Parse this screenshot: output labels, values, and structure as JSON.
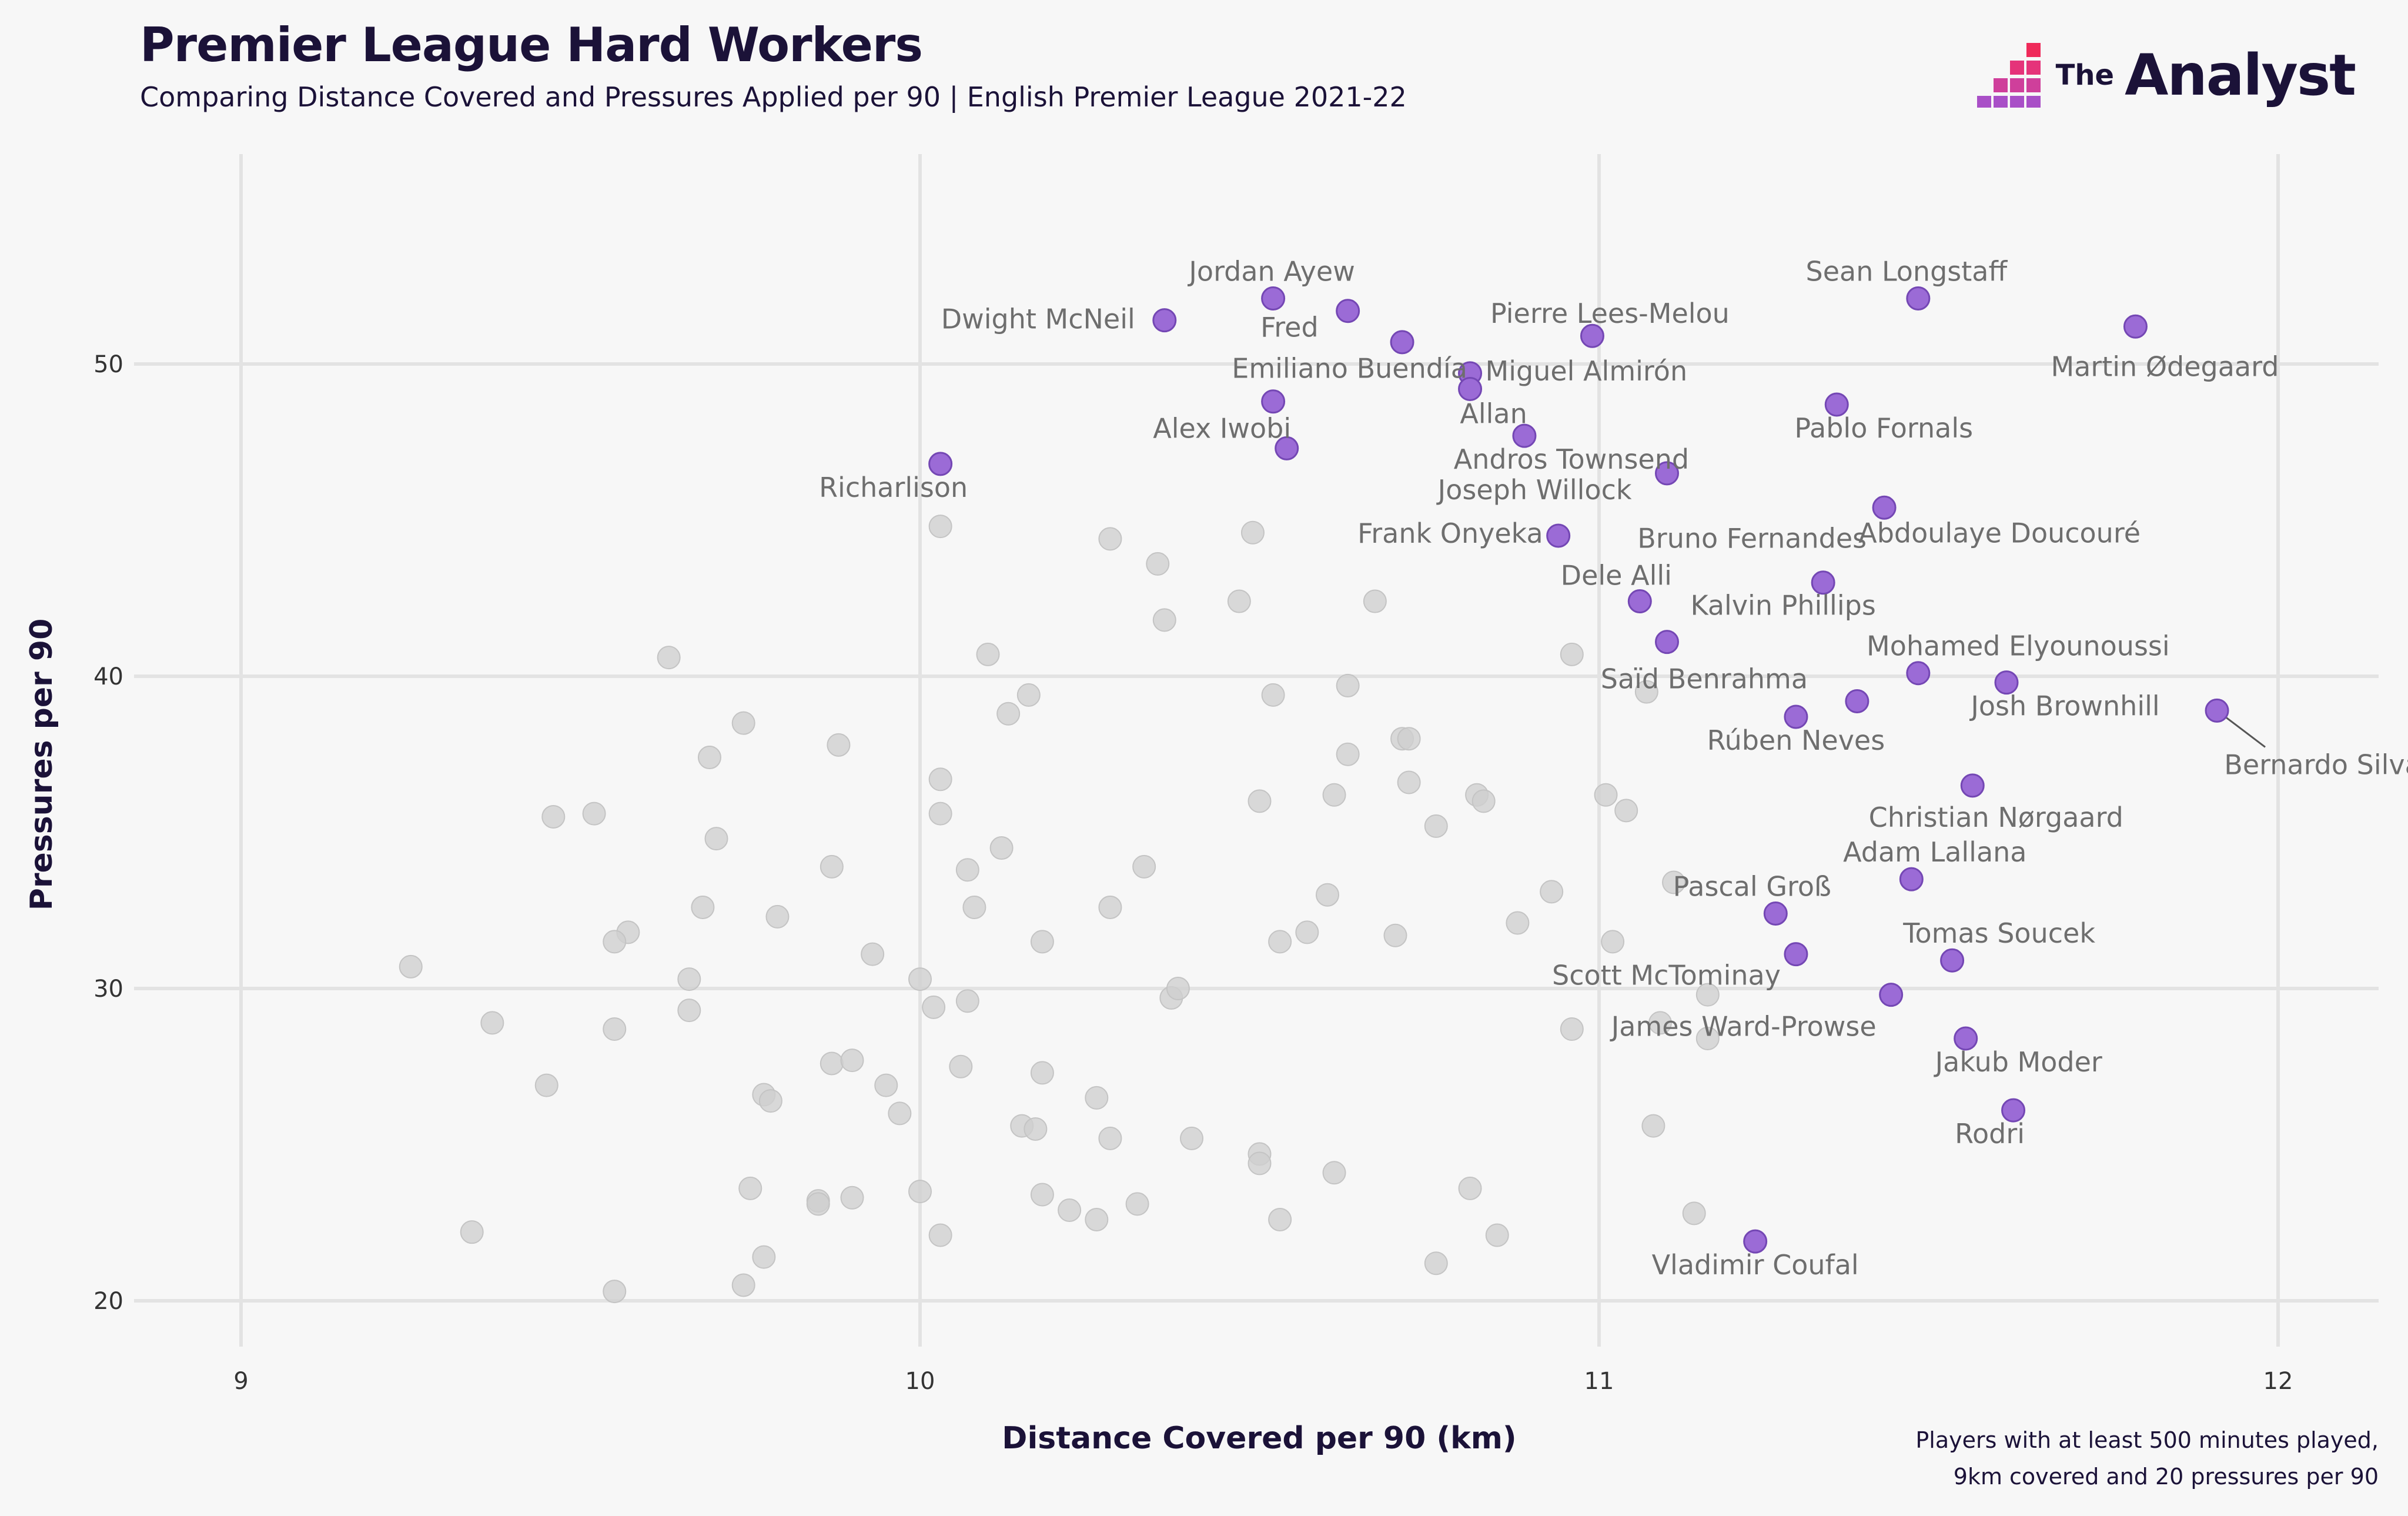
{
  "title": "Premier League Hard Workers",
  "subtitle": "Comparing Distance Covered and Pressures Applied per 90 | English Premier League 2021-22",
  "logo": {
    "prefix": "The",
    "name": "Analyst"
  },
  "footnote": {
    "line1": "Players with at least 500 minutes played,",
    "line2": "9km covered and 20 pressures per 90"
  },
  "colors": {
    "highlight": "#9b6bd6",
    "highlight_stroke": "#7447b4",
    "other": "#d0d0d0",
    "background": "#f7f7f7"
  },
  "chart_data": {
    "type": "scatter",
    "title": "Premier League Hard Workers",
    "xlabel": "Distance Covered per 90 (km)",
    "ylabel": "Pressures per 90",
    "xlim": [
      8.85,
      12.15
    ],
    "ylim": [
      18.7,
      56.5
    ],
    "xticks": [
      9,
      10,
      11,
      12
    ],
    "yticks": [
      20,
      30,
      40,
      50
    ],
    "grid": true,
    "highlighted": [
      {
        "name": "Jordan Ayew",
        "x": 10.52,
        "y": 52.1
      },
      {
        "name": "Fred",
        "x": 10.63,
        "y": 51.7
      },
      {
        "name": "Dwight McNeil",
        "x": 10.36,
        "y": 51.4
      },
      {
        "name": "Sean Longstaff",
        "x": 11.47,
        "y": 52.1
      },
      {
        "name": "Martin Ødegaard",
        "x": 11.79,
        "y": 51.2
      },
      {
        "name": "Pierre Lees-Melou",
        "x": 10.99,
        "y": 50.9
      },
      {
        "name": "Miguel Almirón",
        "x": 10.81,
        "y": 49.7
      },
      {
        "name": "Emiliano Buendía",
        "x": 10.52,
        "y": 48.8
      },
      {
        "name": "Allan",
        "x": 10.81,
        "y": 49.2
      },
      {
        "name": "Unlabelled",
        "x": 10.71,
        "y": 50.7
      },
      {
        "name": "Pablo Fornals",
        "x": 11.35,
        "y": 48.7
      },
      {
        "name": "Andros Townsend",
        "x": 10.89,
        "y": 47.7
      },
      {
        "name": "Alex Iwobi",
        "x": 10.54,
        "y": 47.3
      },
      {
        "name": "Joseph Willock",
        "x": 11.1,
        "y": 46.5
      },
      {
        "name": "Richarlison",
        "x": 10.03,
        "y": 46.8
      },
      {
        "name": "Bruno Fernandes",
        "x": 11.42,
        "y": 45.4
      },
      {
        "name": "Frank Onyeka",
        "x": 10.94,
        "y": 44.5
      },
      {
        "name": "Abdoulaye Doucouré",
        "x": 11.33,
        "y": 43.0
      },
      {
        "name": "Dele Alli",
        "x": 11.06,
        "y": 42.4
      },
      {
        "name": "Kalvin Phillips",
        "x": 11.1,
        "y": 41.1
      },
      {
        "name": "Mohamed Elyounoussi",
        "x": 11.47,
        "y": 40.1
      },
      {
        "name": "Saïd Benrahma",
        "x": 11.38,
        "y": 39.2
      },
      {
        "name": "Josh Brownhill",
        "x": 11.6,
        "y": 39.8
      },
      {
        "name": "Bernardo Silva",
        "x": 11.91,
        "y": 38.9
      },
      {
        "name": "Rúben Neves",
        "x": 11.29,
        "y": 38.7
      },
      {
        "name": "Christian Nørgaard",
        "x": 11.55,
        "y": 36.5
      },
      {
        "name": "Adam Lallana",
        "x": 11.46,
        "y": 33.5
      },
      {
        "name": "Pascal Groß",
        "x": 11.26,
        "y": 32.4
      },
      {
        "name": "Scott McTominay",
        "x": 11.29,
        "y": 31.1
      },
      {
        "name": "Tomas Soucek",
        "x": 11.52,
        "y": 30.9
      },
      {
        "name": "James Ward-Prowse",
        "x": 11.43,
        "y": 29.8
      },
      {
        "name": "Jakub Moder",
        "x": 11.54,
        "y": 28.4
      },
      {
        "name": "Rodri",
        "x": 11.61,
        "y": 26.1
      },
      {
        "name": "Vladimir Coufal",
        "x": 11.23,
        "y": 21.9
      }
    ],
    "others": [
      [
        10.03,
        44.8
      ],
      [
        10.28,
        44.4
      ],
      [
        10.35,
        43.6
      ],
      [
        10.49,
        44.6
      ],
      [
        10.47,
        42.4
      ],
      [
        10.36,
        41.8
      ],
      [
        10.67,
        42.4
      ],
      [
        9.63,
        40.6
      ],
      [
        10.1,
        40.7
      ],
      [
        10.96,
        40.7
      ],
      [
        10.13,
        38.8
      ],
      [
        10.16,
        39.4
      ],
      [
        10.52,
        39.4
      ],
      [
        10.63,
        39.7
      ],
      [
        11.07,
        39.5
      ],
      [
        9.74,
        38.5
      ],
      [
        9.69,
        37.4
      ],
      [
        9.88,
        37.8
      ],
      [
        10.71,
        38.0
      ],
      [
        10.72,
        38.0
      ],
      [
        10.63,
        37.5
      ],
      [
        10.03,
        36.7
      ],
      [
        9.46,
        35.5
      ],
      [
        9.52,
        35.6
      ],
      [
        10.03,
        35.6
      ],
      [
        10.5,
        36.0
      ],
      [
        10.61,
        36.2
      ],
      [
        10.72,
        36.6
      ],
      [
        10.82,
        36.2
      ],
      [
        10.83,
        36.0
      ],
      [
        11.01,
        36.2
      ],
      [
        11.04,
        35.7
      ],
      [
        10.76,
        35.2
      ],
      [
        9.7,
        34.8
      ],
      [
        10.12,
        34.5
      ],
      [
        9.87,
        33.9
      ],
      [
        10.07,
        33.8
      ],
      [
        10.33,
        33.9
      ],
      [
        10.6,
        33.0
      ],
      [
        10.93,
        33.1
      ],
      [
        11.11,
        33.4
      ],
      [
        9.68,
        32.6
      ],
      [
        9.79,
        32.3
      ],
      [
        10.08,
        32.6
      ],
      [
        10.28,
        32.6
      ],
      [
        10.88,
        32.1
      ],
      [
        9.57,
        31.8
      ],
      [
        9.55,
        31.5
      ],
      [
        9.93,
        31.1
      ],
      [
        10.18,
        31.5
      ],
      [
        10.53,
        31.5
      ],
      [
        10.57,
        31.8
      ],
      [
        10.7,
        31.7
      ],
      [
        11.02,
        31.5
      ],
      [
        9.25,
        30.7
      ],
      [
        9.66,
        30.3
      ],
      [
        10.0,
        30.3
      ],
      [
        9.37,
        28.9
      ],
      [
        9.66,
        29.3
      ],
      [
        10.02,
        29.4
      ],
      [
        10.07,
        29.6
      ],
      [
        10.37,
        29.7
      ],
      [
        10.38,
        30.0
      ],
      [
        11.16,
        29.8
      ],
      [
        9.55,
        28.7
      ],
      [
        10.96,
        28.7
      ],
      [
        11.16,
        28.4
      ],
      [
        11.09,
        28.9
      ],
      [
        9.45,
        26.9
      ],
      [
        9.77,
        26.6
      ],
      [
        9.87,
        27.6
      ],
      [
        9.9,
        27.7
      ],
      [
        9.78,
        26.4
      ],
      [
        9.95,
        26.9
      ],
      [
        9.97,
        26.0
      ],
      [
        10.06,
        27.5
      ],
      [
        10.18,
        27.3
      ],
      [
        10.26,
        26.5
      ],
      [
        10.15,
        25.6
      ],
      [
        10.17,
        25.5
      ],
      [
        10.28,
        25.2
      ],
      [
        10.4,
        25.2
      ],
      [
        10.5,
        24.7
      ],
      [
        10.5,
        24.4
      ],
      [
        10.61,
        24.1
      ],
      [
        11.08,
        25.6
      ],
      [
        9.75,
        23.6
      ],
      [
        9.85,
        23.2
      ],
      [
        9.85,
        23.1
      ],
      [
        9.9,
        23.3
      ],
      [
        10.0,
        23.5
      ],
      [
        10.18,
        23.4
      ],
      [
        10.22,
        22.9
      ],
      [
        10.26,
        22.6
      ],
      [
        10.32,
        23.1
      ],
      [
        10.53,
        22.6
      ],
      [
        10.81,
        23.6
      ],
      [
        9.34,
        22.2
      ],
      [
        10.03,
        22.1
      ],
      [
        10.85,
        22.1
      ],
      [
        11.14,
        22.8
      ],
      [
        9.77,
        21.4
      ],
      [
        10.76,
        21.2
      ],
      [
        9.74,
        20.5
      ],
      [
        9.55,
        20.3
      ]
    ]
  }
}
